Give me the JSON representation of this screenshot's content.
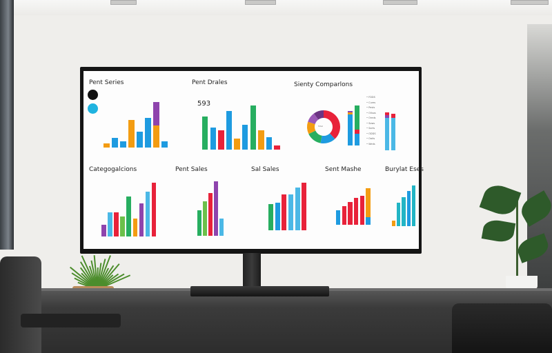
{
  "dashboard": {
    "panels": [
      {
        "title": "Pent Series",
        "bars": [
          [
            [
              5,
              "#f39c12"
            ]
          ],
          [
            [
              12,
              "#1e9be0"
            ]
          ],
          [
            [
              8,
              "#1e9be0"
            ]
          ],
          [
            [
              35,
              "#f39c12"
            ]
          ],
          [
            [
              20,
              "#1e9be0"
            ]
          ],
          [
            [
              38,
              "#1e9be0"
            ]
          ],
          [
            [
              28,
              "#f39c12"
            ],
            [
              30,
              "#8e44ad"
            ]
          ],
          [
            [
              8,
              "#1e9be0"
            ]
          ]
        ]
      },
      {
        "title": "Pent Drales",
        "kpi": "593",
        "bars": [
          [
            [
              60,
              "#27ae60"
            ]
          ],
          [
            [
              40,
              "#1e9be0"
            ]
          ],
          [
            [
              35,
              "#e8223a"
            ]
          ],
          [
            [
              70,
              "#1e9be0"
            ]
          ],
          [
            [
              20,
              "#f39c12"
            ]
          ],
          [
            [
              45,
              "#1e9be0"
            ]
          ],
          [
            [
              80,
              "#27ae60"
            ]
          ],
          [
            [
              35,
              "#f39c12"
            ]
          ],
          [
            [
              22,
              "#1e9be0"
            ]
          ],
          [
            [
              8,
              "#e8223a"
            ]
          ]
        ]
      },
      {
        "title": "Sienty Comparlons",
        "donut": [
          {
            "value": 38,
            "color": "#e8223a"
          },
          {
            "value": 15,
            "color": "#1e9be0"
          },
          {
            "value": 15,
            "color": "#27ae60"
          },
          {
            "value": 12,
            "color": "#f39c12"
          },
          {
            "value": 10,
            "color": "#9b59b6"
          },
          {
            "value": 10,
            "color": "#6c3483"
          }
        ],
        "donut_label": "Total",
        "bars": [
          [
            [
              62,
              "#1e9be0"
            ],
            [
              4,
              "#f39c12"
            ],
            [
              3,
              "#8e44ad"
            ]
          ],
          [
            [
              24,
              "#1e9be0"
            ],
            [
              8,
              "#e8223a"
            ],
            [
              48,
              "#27ae60"
            ]
          ]
        ],
        "bars2": [
          [
            [
              40,
              "#4bb8e6"
            ],
            [
              4,
              "#8e44ad"
            ],
            [
              3,
              "#e8223a"
            ]
          ],
          [
            [
              40,
              "#4bb8e6"
            ],
            [
              5,
              "#e8223a"
            ]
          ]
        ],
        "legend": [
          "FDDS",
          "Cures",
          "Pests",
          "Ollsos",
          "Oreds",
          "Sows",
          "Sarts",
          "ODDS",
          "Oatis",
          "Weds"
        ]
      },
      {
        "title": "Categogalcions",
        "bars": [
          [
            [
              20,
              "#8e44ad"
            ]
          ],
          [
            [
              40,
              "#4bb8e6"
            ]
          ],
          [
            [
              40,
              "#e8223a"
            ]
          ],
          [
            [
              33,
              "#6cc04a"
            ]
          ],
          [
            [
              67,
              "#27ae60"
            ]
          ],
          [
            [
              30,
              "#f39c12"
            ]
          ],
          [
            [
              55,
              "#8e44ad"
            ]
          ],
          [
            [
              75,
              "#4bb8e6"
            ]
          ],
          [
            [
              90,
              "#e8223a"
            ]
          ]
        ]
      },
      {
        "title": "Pent Sales",
        "bars": [
          [
            [
              45,
              "#27ae60"
            ]
          ],
          [
            [
              60,
              "#6cc04a"
            ]
          ],
          [
            [
              75,
              "#e8223a"
            ]
          ],
          [
            [
              95,
              "#8e44ad"
            ]
          ],
          [
            [
              30,
              "#4bb8e6"
            ]
          ]
        ]
      },
      {
        "title": "Sal Sales",
        "bars": [
          [
            [
              55,
              "#27ae60"
            ]
          ],
          [
            [
              58,
              "#1e9be0"
            ]
          ],
          [
            [
              75,
              "#e8223a"
            ]
          ],
          [
            [
              76,
              "#4bb8e6"
            ]
          ],
          [
            [
              90,
              "#4bb8e6"
            ]
          ],
          [
            [
              100,
              "#e8223a"
            ]
          ]
        ]
      },
      {
        "title": "Sent Mashe",
        "bars": [
          [
            [
              35,
              "#1e9be0"
            ]
          ],
          [
            [
              45,
              "#e8223a"
            ]
          ],
          [
            [
              55,
              "#e8223a"
            ]
          ],
          [
            [
              65,
              "#e8223a"
            ]
          ],
          [
            [
              70,
              "#e8223a"
            ]
          ],
          [
            [
              18,
              "#1e9be0"
            ],
            [
              70,
              "#f39c12"
            ]
          ]
        ]
      },
      {
        "title": "Burylat Eses",
        "bars": [
          [
            [
              15,
              "#f39c12"
            ]
          ],
          [
            [
              60,
              "#22b5c5"
            ]
          ],
          [
            [
              75,
              "#22b5c5"
            ]
          ],
          [
            [
              90,
              "#1e9be0"
            ]
          ],
          [
            [
              105,
              "#22b5c5"
            ]
          ]
        ]
      }
    ]
  }
}
